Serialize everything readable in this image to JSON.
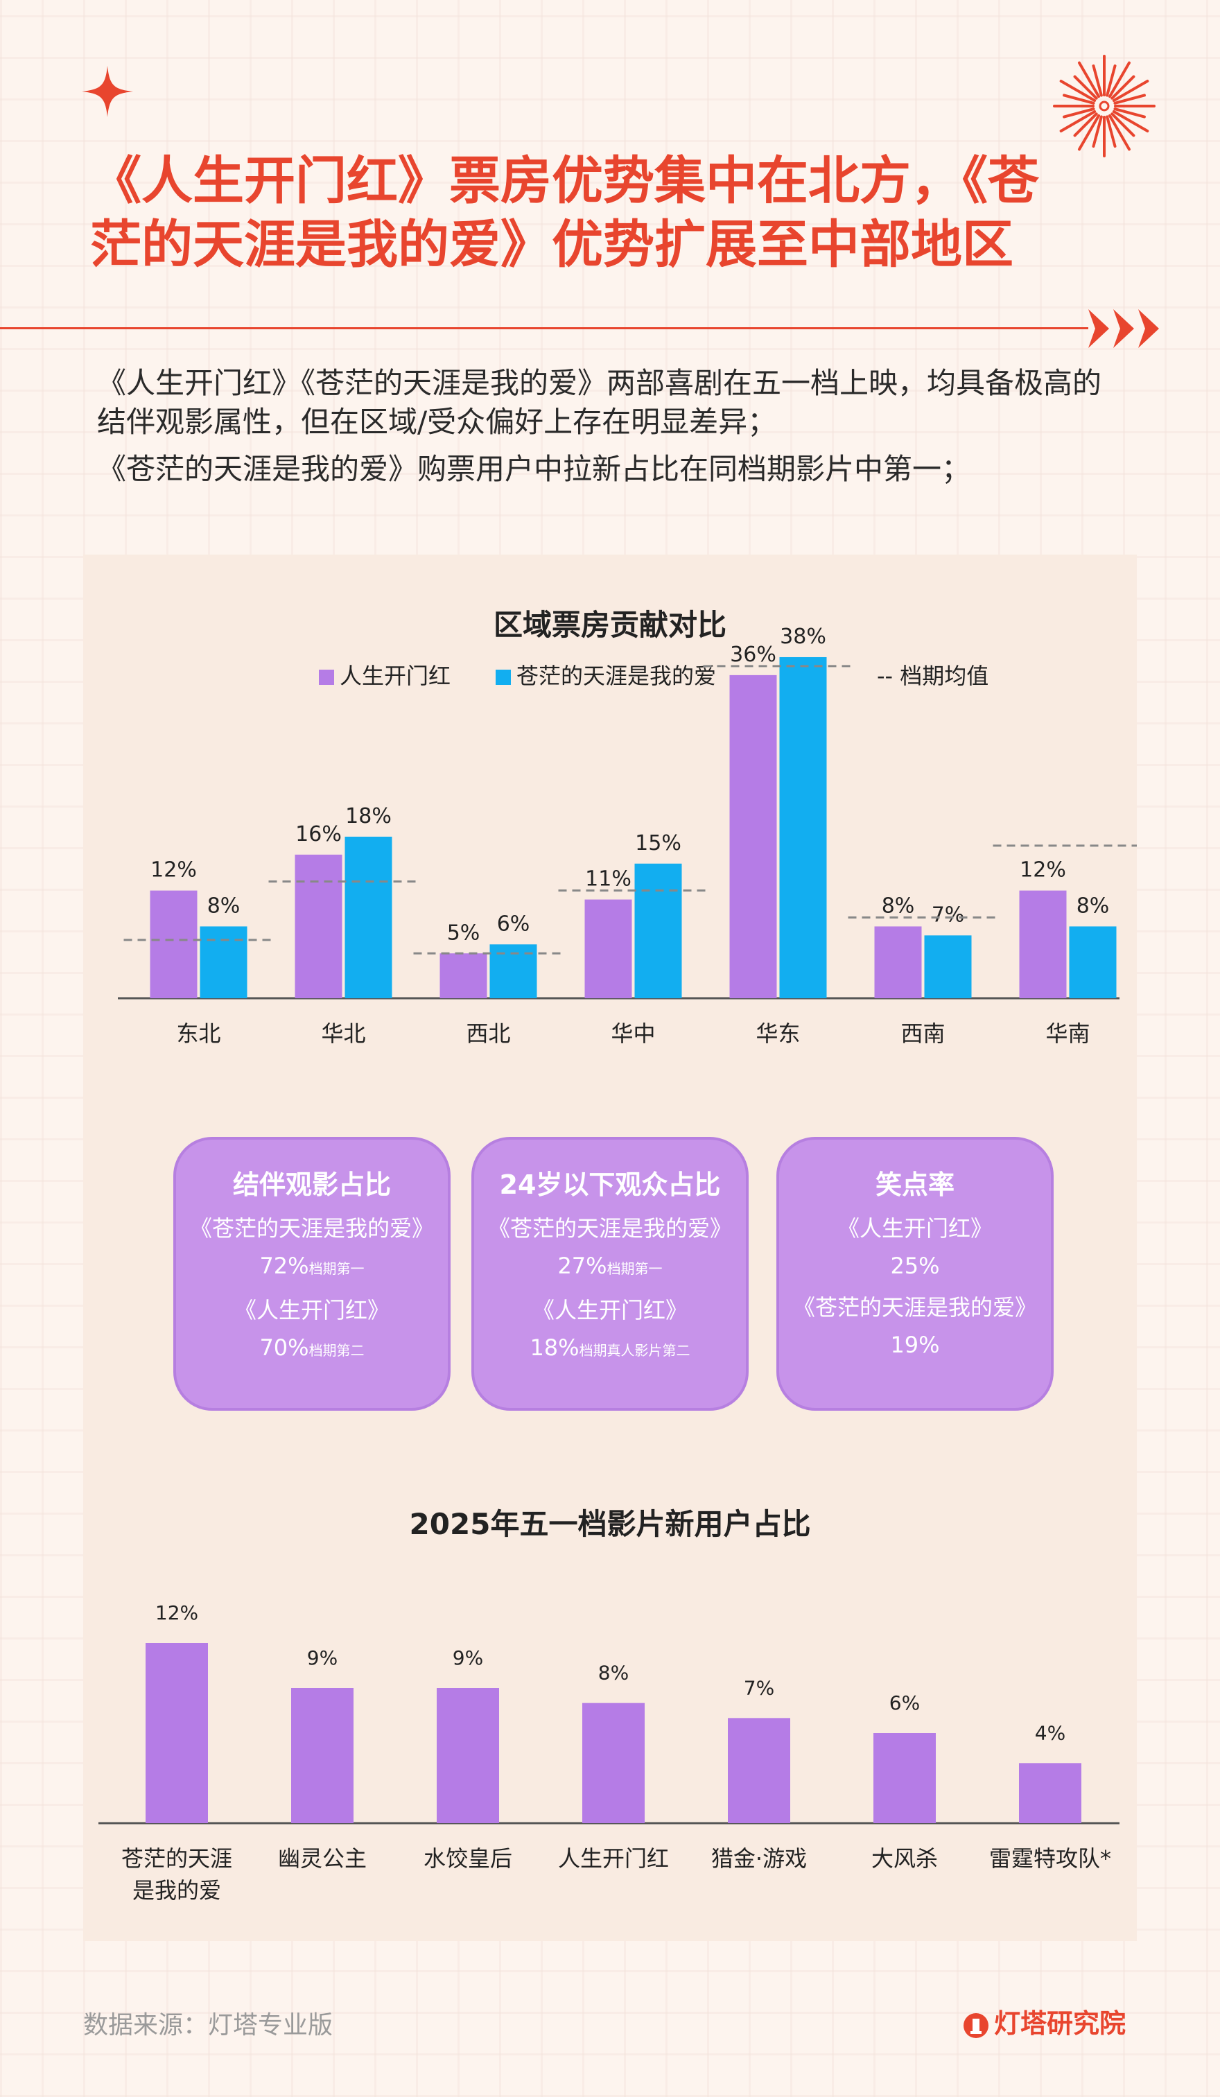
{
  "title": {
    "line1": "《人生开门红》票房优势集中在北方，《苍",
    "line2": "茫的天涯是我的爱》优势扩展至中部地区"
  },
  "intro": {
    "p1": "《人生开门红》《苍茫的天涯是我的爱》两部喜剧在五一档上映，均具备极高的结伴观影属性，但在区域/受众偏好上存在明显差异；",
    "p2": "《苍茫的天涯是我的爱》购票用户中拉新占比在同档期影片中第一；"
  },
  "colors": {
    "accent": "#e8452e",
    "series_a": "#b57ce6",
    "series_b": "#12aef0",
    "card": "#c793ea"
  },
  "chart_data": [
    {
      "type": "bar",
      "title": "区域票房贡献对比",
      "categories": [
        "东北",
        "华北",
        "西北",
        "华中",
        "华东",
        "西南",
        "华南"
      ],
      "series": [
        {
          "name": "人生开门红",
          "values": [
            12,
            16,
            5,
            11,
            36,
            8,
            12
          ],
          "labels": [
            "12%",
            "16%",
            "5%",
            "11%",
            "36%",
            "8%",
            "12%"
          ]
        },
        {
          "name": "苍茫的天涯是我的爱",
          "values": [
            8,
            18,
            6,
            15,
            38,
            7,
            8
          ],
          "labels": [
            "8%",
            "18%",
            "6%",
            "15%",
            "38%",
            "7%",
            "8%"
          ]
        }
      ],
      "reference": {
        "name": "-- 档期均值",
        "values": [
          6.5,
          13,
          5,
          12,
          37,
          9,
          17
        ]
      },
      "ylim": [
        0,
        40
      ],
      "legend": "top",
      "grid": false
    },
    {
      "type": "bar",
      "title": "2025年五一档影片新用户占比",
      "categories": [
        "苍茫的天涯是我的爱",
        "幽灵公主",
        "水饺皇后",
        "人生开门红",
        "猎金·游戏",
        "大风杀",
        "雷霆特攻队*"
      ],
      "category_lines": [
        [
          "苍茫的天涯",
          "是我的爱"
        ],
        [
          "幽灵公主"
        ],
        [
          "水饺皇后"
        ],
        [
          "人生开门红"
        ],
        [
          "猎金·游戏"
        ],
        [
          "大风杀"
        ],
        [
          "雷霆特攻队*"
        ]
      ],
      "values": [
        12,
        9,
        9,
        8,
        7,
        6,
        4
      ],
      "labels": [
        "12%",
        "9%",
        "9%",
        "8%",
        "7%",
        "6%",
        "4%"
      ],
      "ylim": [
        0,
        14
      ],
      "grid": false
    }
  ],
  "cards": [
    {
      "title": "结伴观影占比",
      "sub1": "《苍茫的天涯是我的爱》",
      "val1": "72%",
      "note1": "档期第一",
      "sub2": "《人生开门红》",
      "val2": "70%",
      "note2": "档期第二"
    },
    {
      "title": "24岁以下观众占比",
      "sub1": "《苍茫的天涯是我的爱》",
      "val1": "27%",
      "note1": "档期第一",
      "sub2": "《人生开门红》",
      "val2": "18%",
      "note2": "档期真人影片第二"
    },
    {
      "title": "笑点率",
      "sub1": "《人生开门红》",
      "val1": "25%",
      "note1": "",
      "sub2": "《苍茫的天涯是我的爱》",
      "val2": "19%",
      "note2": ""
    }
  ],
  "footer": {
    "source": "数据来源：灯塔专业版",
    "brand": "灯塔研究院"
  }
}
